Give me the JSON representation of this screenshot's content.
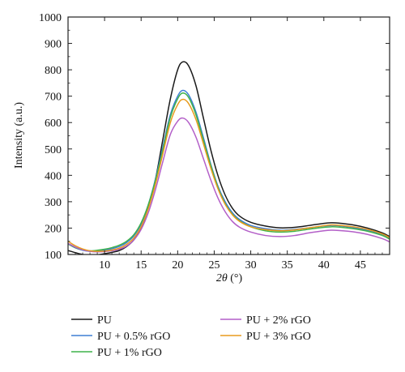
{
  "chart_data": {
    "type": "line",
    "xlabel_italic": "2θ",
    "xlabel_rest": " (°)",
    "ylabel": "Intensity (a.u.)",
    "xlim": [
      5,
      49
    ],
    "ylim": [
      100,
      1000
    ],
    "x_ticks": [
      10,
      15,
      20,
      25,
      30,
      35,
      40,
      45
    ],
    "y_ticks": [
      100,
      200,
      300,
      400,
      500,
      600,
      700,
      800,
      900,
      1000
    ],
    "grid": false,
    "legend_position": "bottom",
    "series": [
      {
        "name": "PU",
        "color": "#1a1a1a",
        "points": [
          [
            5,
            115
          ],
          [
            6,
            107
          ],
          [
            7,
            100
          ],
          [
            8,
            97
          ],
          [
            9,
            99
          ],
          [
            10,
            103
          ],
          [
            11,
            108
          ],
          [
            12,
            115
          ],
          [
            13,
            130
          ],
          [
            14,
            155
          ],
          [
            15,
            200
          ],
          [
            16,
            280
          ],
          [
            17,
            390
          ],
          [
            18,
            540
          ],
          [
            19,
            690
          ],
          [
            20,
            800
          ],
          [
            20.7,
            830
          ],
          [
            21.5,
            815
          ],
          [
            22.5,
            740
          ],
          [
            23.5,
            620
          ],
          [
            24.5,
            500
          ],
          [
            25.5,
            400
          ],
          [
            26.5,
            325
          ],
          [
            27.5,
            275
          ],
          [
            28.5,
            245
          ],
          [
            30,
            222
          ],
          [
            32,
            208
          ],
          [
            34,
            201
          ],
          [
            36,
            203
          ],
          [
            38,
            210
          ],
          [
            40,
            218
          ],
          [
            41,
            220
          ],
          [
            42,
            219
          ],
          [
            44,
            212
          ],
          [
            46,
            200
          ],
          [
            48,
            182
          ],
          [
            49,
            168
          ]
        ]
      },
      {
        "name": "PU + 0.5% rGO",
        "color": "#3f7fd4",
        "points": [
          [
            5,
            140
          ],
          [
            6,
            125
          ],
          [
            7,
            116
          ],
          [
            8,
            112
          ],
          [
            9,
            113
          ],
          [
            10,
            116
          ],
          [
            11,
            122
          ],
          [
            12,
            130
          ],
          [
            13,
            145
          ],
          [
            14,
            170
          ],
          [
            15,
            215
          ],
          [
            16,
            290
          ],
          [
            17,
            390
          ],
          [
            18,
            510
          ],
          [
            19,
            630
          ],
          [
            20,
            700
          ],
          [
            20.7,
            722
          ],
          [
            21.5,
            705
          ],
          [
            22.5,
            640
          ],
          [
            23.5,
            545
          ],
          [
            24.5,
            445
          ],
          [
            25.5,
            360
          ],
          [
            26.5,
            300
          ],
          [
            27.5,
            258
          ],
          [
            28.5,
            232
          ],
          [
            30,
            210
          ],
          [
            32,
            198
          ],
          [
            34,
            192
          ],
          [
            36,
            195
          ],
          [
            38,
            201
          ],
          [
            40,
            208
          ],
          [
            41,
            210
          ],
          [
            42,
            209
          ],
          [
            44,
            202
          ],
          [
            46,
            192
          ],
          [
            48,
            176
          ],
          [
            49,
            162
          ]
        ]
      },
      {
        "name": "PU + 1% rGO",
        "color": "#3fb24a",
        "points": [
          [
            5,
            140
          ],
          [
            6,
            126
          ],
          [
            7,
            118
          ],
          [
            8,
            114
          ],
          [
            9,
            116
          ],
          [
            10,
            120
          ],
          [
            11,
            126
          ],
          [
            12,
            135
          ],
          [
            13,
            150
          ],
          [
            14,
            175
          ],
          [
            15,
            220
          ],
          [
            16,
            290
          ],
          [
            17,
            385
          ],
          [
            18,
            500
          ],
          [
            19,
            620
          ],
          [
            20,
            690
          ],
          [
            20.7,
            712
          ],
          [
            21.5,
            695
          ],
          [
            22.5,
            630
          ],
          [
            23.5,
            535
          ],
          [
            24.5,
            440
          ],
          [
            25.5,
            355
          ],
          [
            26.5,
            293
          ],
          [
            27.5,
            252
          ],
          [
            28.5,
            227
          ],
          [
            30,
            205
          ],
          [
            32,
            190
          ],
          [
            34,
            185
          ],
          [
            36,
            188
          ],
          [
            38,
            196
          ],
          [
            40,
            203
          ],
          [
            41,
            205
          ],
          [
            42,
            204
          ],
          [
            44,
            198
          ],
          [
            46,
            188
          ],
          [
            48,
            172
          ],
          [
            49,
            158
          ]
        ]
      },
      {
        "name": "PU + 2% rGO",
        "color": "#b35fc8",
        "points": [
          [
            5,
            142
          ],
          [
            6,
            128
          ],
          [
            7,
            118
          ],
          [
            8,
            112
          ],
          [
            9,
            110
          ],
          [
            10,
            111
          ],
          [
            11,
            114
          ],
          [
            12,
            120
          ],
          [
            13,
            132
          ],
          [
            14,
            155
          ],
          [
            15,
            195
          ],
          [
            16,
            260
          ],
          [
            17,
            350
          ],
          [
            18,
            455
          ],
          [
            19,
            555
          ],
          [
            20,
            605
          ],
          [
            20.7,
            617
          ],
          [
            21.5,
            600
          ],
          [
            22.5,
            545
          ],
          [
            23.5,
            465
          ],
          [
            24.5,
            385
          ],
          [
            25.5,
            315
          ],
          [
            26.5,
            262
          ],
          [
            27.5,
            225
          ],
          [
            28.5,
            203
          ],
          [
            30,
            185
          ],
          [
            32,
            172
          ],
          [
            34,
            168
          ],
          [
            36,
            172
          ],
          [
            38,
            182
          ],
          [
            40,
            190
          ],
          [
            41,
            192
          ],
          [
            42,
            191
          ],
          [
            44,
            186
          ],
          [
            46,
            176
          ],
          [
            48,
            160
          ],
          [
            49,
            148
          ]
        ]
      },
      {
        "name": "PU + 3% rGO",
        "color": "#e89b1e",
        "points": [
          [
            5,
            150
          ],
          [
            6,
            133
          ],
          [
            7,
            121
          ],
          [
            8,
            114
          ],
          [
            9,
            112
          ],
          [
            10,
            113
          ],
          [
            11,
            117
          ],
          [
            12,
            124
          ],
          [
            13,
            138
          ],
          [
            14,
            162
          ],
          [
            15,
            205
          ],
          [
            16,
            275
          ],
          [
            17,
            370
          ],
          [
            18,
            485
          ],
          [
            19,
            600
          ],
          [
            20,
            668
          ],
          [
            20.7,
            688
          ],
          [
            21.5,
            672
          ],
          [
            22.5,
            612
          ],
          [
            23.5,
            522
          ],
          [
            24.5,
            430
          ],
          [
            25.5,
            350
          ],
          [
            26.5,
            290
          ],
          [
            27.5,
            250
          ],
          [
            28.5,
            225
          ],
          [
            30,
            205
          ],
          [
            32,
            194
          ],
          [
            34,
            190
          ],
          [
            36,
            193
          ],
          [
            38,
            201
          ],
          [
            40,
            209
          ],
          [
            41,
            212
          ],
          [
            42,
            211
          ],
          [
            44,
            205
          ],
          [
            46,
            195
          ],
          [
            48,
            178
          ],
          [
            49,
            164
          ]
        ]
      }
    ]
  }
}
